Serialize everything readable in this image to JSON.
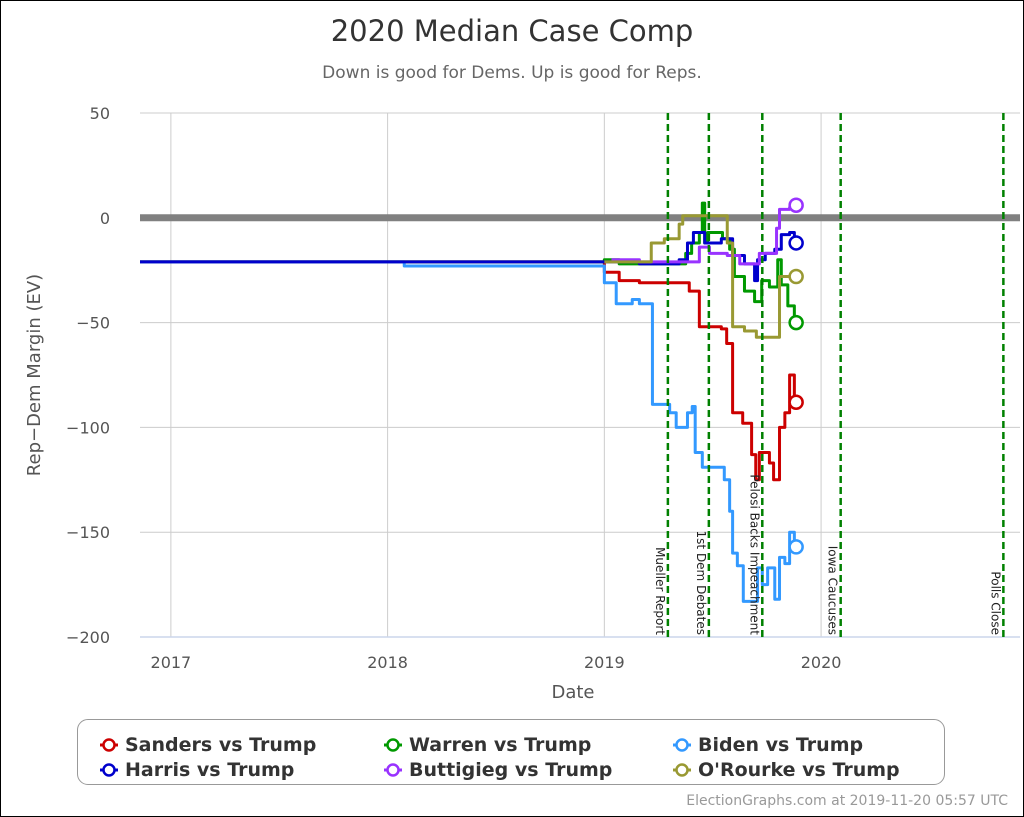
{
  "chart_data": {
    "type": "line",
    "title": "2020 Median Case Comp",
    "subtitle": "Down is good for Dems. Up is good for Reps.",
    "xlabel": "Date",
    "ylabel": "Rep−Dem Margin (EV)",
    "xlim": [
      "2016-11-10",
      "2020-12-01"
    ],
    "ylim": [
      -200,
      50
    ],
    "x_ticks": [
      {
        "date": "2017-01-01",
        "label": "2017"
      },
      {
        "date": "2018-01-01",
        "label": "2018"
      },
      {
        "date": "2019-01-01",
        "label": "2019"
      },
      {
        "date": "2020-01-01",
        "label": "2020"
      }
    ],
    "y_ticks": [
      {
        "value": 50,
        "label": "50"
      },
      {
        "value": 0,
        "label": "0"
      },
      {
        "value": -50,
        "label": "−50"
      },
      {
        "value": -100,
        "label": "−100"
      },
      {
        "value": -150,
        "label": "−150"
      },
      {
        "value": -200,
        "label": "−200"
      }
    ],
    "grid": true,
    "step": true,
    "reference_line": {
      "value": 0,
      "color": "#808080"
    },
    "events": [
      {
        "date": "2019-04-18",
        "label": "Mueller Report"
      },
      {
        "date": "2019-06-26",
        "label": "1st Dem Debates"
      },
      {
        "date": "2019-09-24",
        "label": "Pelosi Backs Impeachment"
      },
      {
        "date": "2020-02-03",
        "label": "Iowa Caucuses"
      },
      {
        "date": "2020-11-03",
        "label": "Polls Close"
      }
    ],
    "event_color": "#008000",
    "legend_position": "bottom",
    "series": [
      {
        "name": "Sanders vs Trump",
        "color": "#cc0000",
        "points": [
          [
            "2016-11-10",
            -21
          ],
          [
            "2019-01-01",
            -26
          ],
          [
            "2019-01-26",
            -30
          ],
          [
            "2019-03-01",
            -31
          ],
          [
            "2019-05-24",
            -35
          ],
          [
            "2019-06-10",
            -52
          ],
          [
            "2019-07-17",
            -53
          ],
          [
            "2019-07-26",
            -60
          ],
          [
            "2019-08-05",
            -93
          ],
          [
            "2019-08-22",
            -98
          ],
          [
            "2019-09-06",
            -113
          ],
          [
            "2019-09-13",
            -125
          ],
          [
            "2019-09-19",
            -112
          ],
          [
            "2019-10-06",
            -117
          ],
          [
            "2019-10-13",
            -125
          ],
          [
            "2019-10-23",
            -100
          ],
          [
            "2019-11-01",
            -93
          ],
          [
            "2019-11-09",
            -75
          ],
          [
            "2019-11-17",
            -88
          ],
          [
            "2019-11-20",
            -88
          ]
        ]
      },
      {
        "name": "Warren vs Trump",
        "color": "#009900",
        "points": [
          [
            "2016-11-10",
            -21
          ],
          [
            "2019-01-01",
            -20
          ],
          [
            "2019-01-26",
            -22
          ],
          [
            "2019-05-18",
            -17
          ],
          [
            "2019-05-28",
            -12
          ],
          [
            "2019-06-10",
            -7
          ],
          [
            "2019-06-15",
            7
          ],
          [
            "2019-06-19",
            -12
          ],
          [
            "2019-06-24",
            -7
          ],
          [
            "2019-07-19",
            -10
          ],
          [
            "2019-07-31",
            -15
          ],
          [
            "2019-08-08",
            -28
          ],
          [
            "2019-08-25",
            -35
          ],
          [
            "2019-09-11",
            -40
          ],
          [
            "2019-09-23",
            -30
          ],
          [
            "2019-10-06",
            -33
          ],
          [
            "2019-10-20",
            -20
          ],
          [
            "2019-10-26",
            -32
          ],
          [
            "2019-11-06",
            -42
          ],
          [
            "2019-11-17",
            -50
          ],
          [
            "2019-11-20",
            -50
          ]
        ]
      },
      {
        "name": "Biden vs Trump",
        "color": "#3399ff",
        "points": [
          [
            "2016-11-10",
            -21
          ],
          [
            "2018-01-29",
            -23
          ],
          [
            "2019-01-01",
            -31
          ],
          [
            "2019-01-21",
            -41
          ],
          [
            "2019-02-17",
            -39
          ],
          [
            "2019-03-01",
            -41
          ],
          [
            "2019-03-23",
            -89
          ],
          [
            "2019-04-21",
            -93
          ],
          [
            "2019-05-02",
            -100
          ],
          [
            "2019-05-21",
            -93
          ],
          [
            "2019-05-29",
            -90
          ],
          [
            "2019-06-03",
            -112
          ],
          [
            "2019-06-15",
            -119
          ],
          [
            "2019-07-22",
            -125
          ],
          [
            "2019-07-31",
            -140
          ],
          [
            "2019-08-05",
            -160
          ],
          [
            "2019-08-13",
            -166
          ],
          [
            "2019-08-23",
            -183
          ],
          [
            "2019-09-16",
            -167
          ],
          [
            "2019-09-24",
            -175
          ],
          [
            "2019-10-03",
            -167
          ],
          [
            "2019-10-15",
            -182
          ],
          [
            "2019-10-23",
            -162
          ],
          [
            "2019-11-01",
            -165
          ],
          [
            "2019-11-09",
            -150
          ],
          [
            "2019-11-17",
            -157
          ],
          [
            "2019-11-20",
            -157
          ]
        ]
      },
      {
        "name": "Harris vs Trump",
        "color": "#0000cc",
        "points": [
          [
            "2016-11-10",
            -21
          ],
          [
            "2019-03-01",
            -22
          ],
          [
            "2019-05-07",
            -20
          ],
          [
            "2019-05-21",
            -12
          ],
          [
            "2019-05-31",
            -7
          ],
          [
            "2019-06-19",
            -12
          ],
          [
            "2019-07-17",
            -10
          ],
          [
            "2019-08-05",
            -18
          ],
          [
            "2019-08-25",
            -22
          ],
          [
            "2019-09-11",
            -30
          ],
          [
            "2019-09-16",
            -20
          ],
          [
            "2019-09-29",
            -17
          ],
          [
            "2019-10-15",
            -15
          ],
          [
            "2019-10-26",
            -8
          ],
          [
            "2019-11-09",
            -7
          ],
          [
            "2019-11-17",
            -12
          ],
          [
            "2019-11-20",
            -12
          ]
        ]
      },
      {
        "name": "Buttigieg vs Trump",
        "color": "#9933ff",
        "points": [
          [
            "2019-01-13",
            -20
          ],
          [
            "2019-03-01",
            -21
          ],
          [
            "2019-06-10",
            -14
          ],
          [
            "2019-06-27",
            -17
          ],
          [
            "2019-07-27",
            -18
          ],
          [
            "2019-08-17",
            -22
          ],
          [
            "2019-09-19",
            -17
          ],
          [
            "2019-10-18",
            -5
          ],
          [
            "2019-10-23",
            4
          ],
          [
            "2019-11-09",
            5
          ],
          [
            "2019-11-17",
            6
          ],
          [
            "2019-11-20",
            6
          ]
        ]
      },
      {
        "name": "O'Rourke vs Trump",
        "color": "#999933",
        "points": [
          [
            "2019-01-01",
            -21
          ],
          [
            "2019-03-21",
            -12
          ],
          [
            "2019-04-12",
            -10
          ],
          [
            "2019-05-07",
            -3
          ],
          [
            "2019-05-13",
            1
          ],
          [
            "2019-07-27",
            -12
          ],
          [
            "2019-08-05",
            -52
          ],
          [
            "2019-08-25",
            -54
          ],
          [
            "2019-09-14",
            -57
          ],
          [
            "2019-10-23",
            -28
          ],
          [
            "2019-11-20",
            -28
          ]
        ]
      }
    ]
  },
  "footer": "ElectionGraphs.com at 2019-11-20 05:57 UTC"
}
